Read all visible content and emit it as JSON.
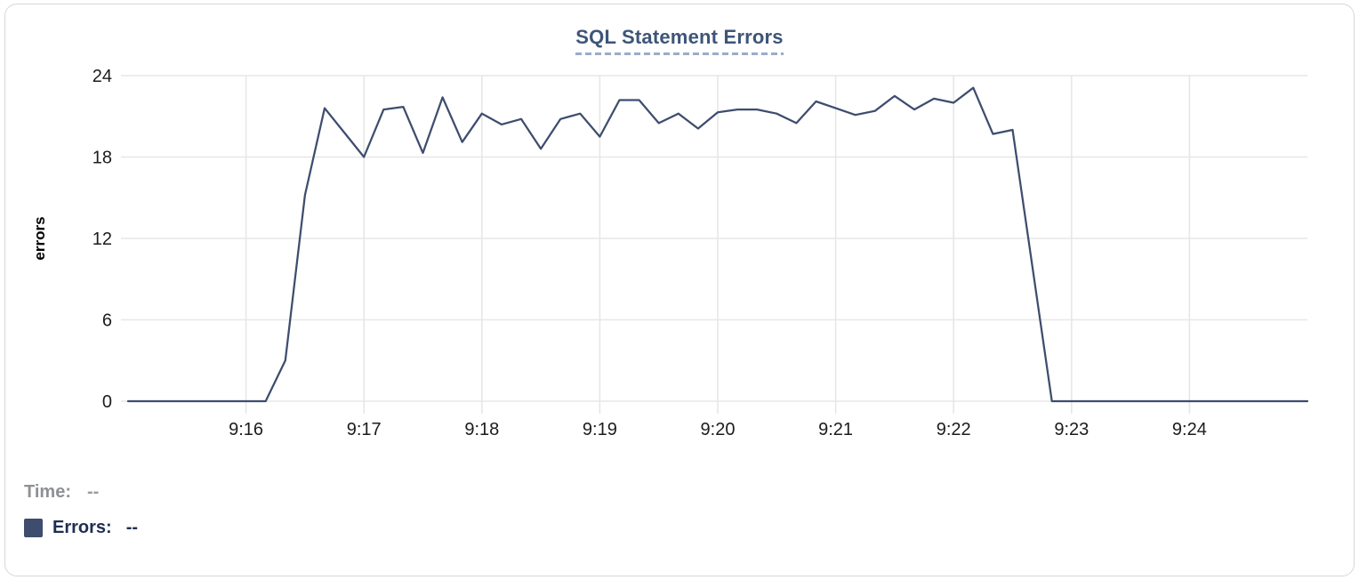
{
  "chart_data": {
    "type": "line",
    "title": "SQL Statement Errors",
    "xlabel": "",
    "ylabel": "errors",
    "ylim": [
      0,
      24
    ],
    "y_ticks": [
      0,
      6,
      12,
      18,
      24
    ],
    "x_ticks": [
      "9:16",
      "9:17",
      "9:18",
      "9:19",
      "9:20",
      "9:21",
      "9:22",
      "9:23",
      "9:24"
    ],
    "x_start": "9:15:00",
    "x_end": "9:25:00",
    "sample_interval_seconds": 10,
    "grid": true,
    "legend_position": "bottom-left",
    "series": [
      {
        "name": "Errors",
        "color": "#3e4d6e",
        "start_time": "9:15:00",
        "interval_seconds": 10,
        "values": [
          0,
          0,
          0,
          0,
          0,
          0,
          0,
          0,
          3,
          15.2,
          21.6,
          19.8,
          18,
          21.5,
          21.7,
          18.3,
          22.4,
          19.1,
          21.2,
          20.4,
          20.8,
          18.6,
          20.8,
          21.2,
          19.5,
          22.2,
          22.2,
          20.5,
          21.2,
          20.1,
          21.3,
          21.5,
          21.5,
          21.2,
          20.5,
          22.1,
          21.6,
          21.1,
          21.4,
          22.5,
          21.5,
          22.3,
          22,
          23.1,
          19.7,
          20,
          10,
          0,
          0,
          0,
          0,
          0,
          0,
          0,
          0,
          0,
          0,
          0,
          0,
          0,
          0
        ]
      }
    ]
  },
  "readout": {
    "time_label": "Time:",
    "time_value": "--",
    "errors_label": "Errors:",
    "errors_value": "--"
  },
  "colors": {
    "line": "#3e4d6e",
    "title": "#3e5578",
    "title_underline": "#9cabc9",
    "grid": "#e7e7e7",
    "axis_text": "#1c1c1e",
    "time_label_gray": "#8e9094",
    "legend_navy": "#1f2e52",
    "card_border": "#d7d7d7"
  }
}
